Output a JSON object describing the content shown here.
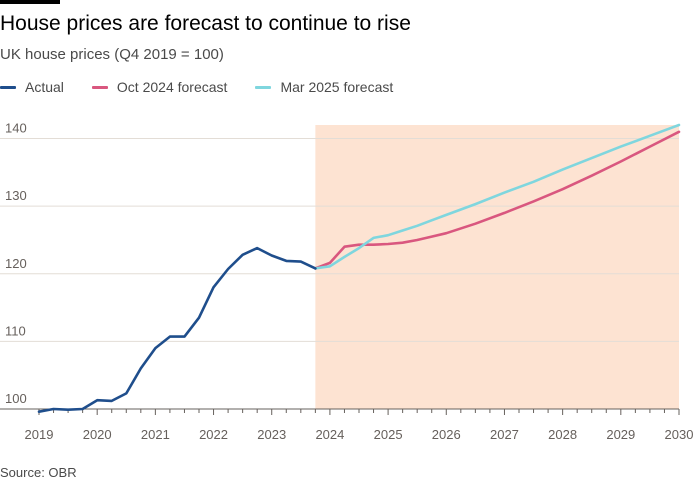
{
  "title": "House prices are forecast to continue to rise",
  "subtitle": "UK house prices (Q4 2019 = 100)",
  "source": "Source: OBR",
  "colors": {
    "actual": "#1f4e8c",
    "oct2024": "#d9577f",
    "mar2025": "#7fd6de",
    "forecast_region": "#fde3d2",
    "grid": "#e3ddd6"
  },
  "chart_data": {
    "type": "line",
    "title": "House prices are forecast to continue to rise",
    "ylabel": "UK house prices (Q4 2019 = 100)",
    "xlabel": "",
    "xlim": [
      2019,
      2030
    ],
    "ylim": [
      100,
      142
    ],
    "x_ticks": [
      "2019",
      "2020",
      "2021",
      "2022",
      "2023",
      "2024",
      "2025",
      "2026",
      "2027",
      "2028",
      "2029",
      "2030"
    ],
    "y_ticks": [
      "100",
      "110",
      "120",
      "130",
      "140"
    ],
    "grid": "horizontal",
    "legend_position": "top-left",
    "forecast_region": {
      "from": 2023.75,
      "to": 2030
    },
    "series": [
      {
        "name": "Actual",
        "color": "#1f4e8c",
        "x": [
          2019.0,
          2019.25,
          2019.5,
          2019.75,
          2020.0,
          2020.25,
          2020.5,
          2020.75,
          2021.0,
          2021.25,
          2021.5,
          2021.75,
          2022.0,
          2022.25,
          2022.5,
          2022.75,
          2023.0,
          2023.25,
          2023.5,
          2023.75
        ],
        "values": [
          99.6,
          100.0,
          99.9,
          100.0,
          101.3,
          101.2,
          102.3,
          106.0,
          109.0,
          110.7,
          110.7,
          113.5,
          118.0,
          120.7,
          122.8,
          123.8,
          122.7,
          121.9,
          121.8,
          120.8
        ]
      },
      {
        "name": "Oct 2024 forecast",
        "color": "#d9577f",
        "x": [
          2023.75,
          2024.0,
          2024.25,
          2024.5,
          2024.75,
          2025.0,
          2025.25,
          2025.5,
          2025.75,
          2026.0,
          2026.5,
          2027.0,
          2027.5,
          2028.0,
          2028.5,
          2029.0,
          2029.5,
          2030.0
        ],
        "values": [
          120.8,
          121.6,
          124.0,
          124.3,
          124.3,
          124.4,
          124.6,
          125.0,
          125.5,
          126.0,
          127.4,
          129.0,
          130.7,
          132.5,
          134.5,
          136.6,
          138.8,
          141.0
        ]
      },
      {
        "name": "Mar 2025 forecast",
        "color": "#7fd6de",
        "x": [
          2023.75,
          2024.0,
          2024.25,
          2024.5,
          2024.75,
          2025.0,
          2025.25,
          2025.5,
          2025.75,
          2026.0,
          2026.5,
          2027.0,
          2027.5,
          2028.0,
          2028.5,
          2029.0,
          2029.5,
          2030.0
        ],
        "values": [
          120.8,
          121.1,
          122.5,
          123.8,
          125.3,
          125.7,
          126.4,
          127.1,
          127.9,
          128.7,
          130.3,
          132.0,
          133.6,
          135.4,
          137.1,
          138.8,
          140.4,
          142.0
        ]
      }
    ]
  }
}
